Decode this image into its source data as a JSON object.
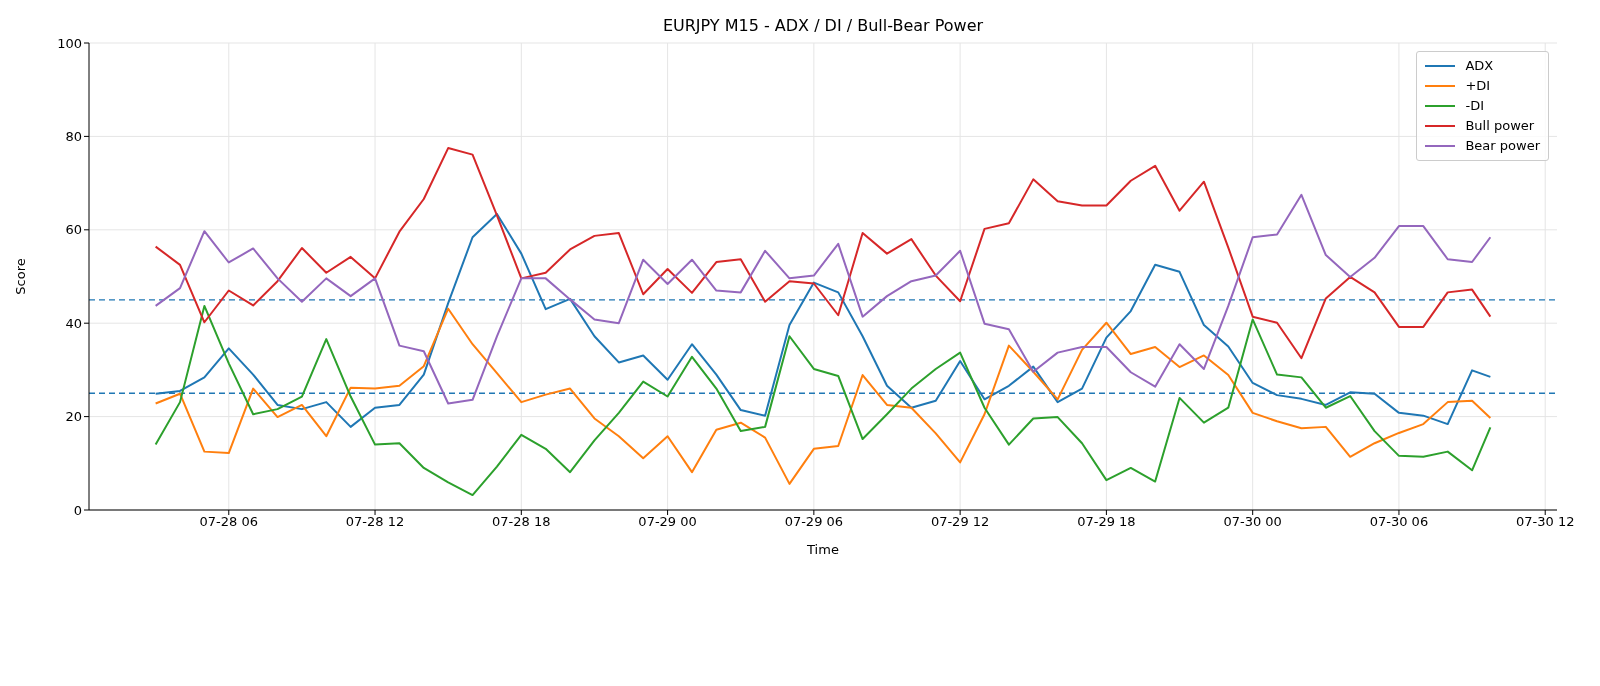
{
  "chart_data": {
    "type": "line",
    "title": "EURJPY M15 - ADX / DI / Bull-Bear Power",
    "xlabel": "Time",
    "ylabel": "Score",
    "x": [
      "--07-28T03:00",
      "--07-28T04:00",
      "--07-28T05:00",
      "--07-28T06:00",
      "--07-28T07:00",
      "--07-28T08:00",
      "--07-28T09:00",
      "--07-28T10:00",
      "--07-28T11:00",
      "--07-28T12:00",
      "--07-28T13:00",
      "--07-28T14:00",
      "--07-28T15:00",
      "--07-28T16:00",
      "--07-28T17:00",
      "--07-28T18:00",
      "--07-28T19:00",
      "--07-28T20:00",
      "--07-28T21:00",
      "--07-28T22:00",
      "--07-28T23:00",
      "--07-29T00:00",
      "--07-29T01:00",
      "--07-29T02:00",
      "--07-29T03:00",
      "--07-29T04:00",
      "--07-29T05:00",
      "--07-29T06:00",
      "--07-29T07:00",
      "--07-29T08:00",
      "--07-29T09:00",
      "--07-29T10:00",
      "--07-29T11:00",
      "--07-29T12:00",
      "--07-29T13:00",
      "--07-29T14:00",
      "--07-29T15:00",
      "--07-29T16:00",
      "--07-29T17:00",
      "--07-29T18:00",
      "--07-29T19:00",
      "--07-29T20:00",
      "--07-29T21:00",
      "--07-29T22:00",
      "--07-29T23:00",
      "--07-30T00:00",
      "--07-30T01:00",
      "--07-30T02:00",
      "--07-30T03:00",
      "--07-30T04:00",
      "--07-30T05:00",
      "--07-30T06:00",
      "--07-30T07:00",
      "--07-30T08:00",
      "--07-30T09:00",
      "--07-30T09:45"
    ],
    "series": [
      {
        "name": "ADX",
        "color": "#1f77b4",
        "values": [
          24.9,
          25.5,
          28.4,
          34.6,
          29,
          22.5,
          21.6,
          23.1,
          17.8,
          21.9,
          22.5,
          29,
          44.3,
          58.4,
          63.4,
          54.9,
          43,
          45.2,
          37.2,
          31.6,
          33.1,
          27.9,
          35.5,
          29,
          21.4,
          20.2,
          39.6,
          48.7,
          46.6,
          37.2,
          26.6,
          21.9,
          23.4,
          31.9,
          23.7,
          26.6,
          30.7,
          23.1,
          26,
          36.9,
          42.6,
          52.5,
          51,
          39.6,
          35,
          27.2,
          24.6,
          23.8,
          22.5,
          25.2,
          24.9,
          20.8,
          20.2,
          18.4,
          29.9,
          28.5
        ]
      },
      {
        "name": "+DI",
        "color": "#ff7f0e",
        "values": [
          22.8,
          24.9,
          12.5,
          12.2,
          26,
          19.9,
          22.5,
          15.8,
          26.2,
          26,
          26.6,
          30.8,
          43.1,
          35.5,
          29.3,
          23.1,
          24.7,
          26,
          19.6,
          15.8,
          11.1,
          15.8,
          8.1,
          17.2,
          18.7,
          15.5,
          5.6,
          13.1,
          13.7,
          28.9,
          22.5,
          21.9,
          16.4,
          10.2,
          20.5,
          35.2,
          29.6,
          23.7,
          34.3,
          40.1,
          33.4,
          34.9,
          30.6,
          33.1,
          28.9,
          20.8,
          19,
          17.5,
          17.8,
          11.4,
          14.3,
          16.5,
          18.4,
          23.1,
          23.4,
          19.7
        ]
      },
      {
        "name": "-DI",
        "color": "#2ca02c",
        "values": [
          14,
          23.1,
          43.7,
          31.4,
          20.5,
          21.6,
          24.3,
          36.6,
          24.3,
          14,
          14.3,
          9,
          5.9,
          3.2,
          9.3,
          16.1,
          13.1,
          8.1,
          14.9,
          20.8,
          27.5,
          24.3,
          32.8,
          26,
          16.9,
          17.8,
          37.2,
          30.2,
          28.7,
          15.2,
          20.5,
          26,
          30.2,
          33.7,
          21.9,
          14,
          19.6,
          19.9,
          14.3,
          6.4,
          9,
          6.1,
          24,
          18.7,
          21.9,
          40.8,
          29,
          28.4,
          21.9,
          24.4,
          16.9,
          11.6,
          11.4,
          12.5,
          8.5,
          17.7
        ]
      },
      {
        "name": "Bull power",
        "color": "#d62728",
        "values": [
          56.4,
          52.5,
          40.2,
          47,
          43.8,
          49,
          56.1,
          50.8,
          54.2,
          49.6,
          59.6,
          66.6,
          77.5,
          76.1,
          63.1,
          49.6,
          50.8,
          55.8,
          58.7,
          59.3,
          46.2,
          51.6,
          46.5,
          53.1,
          53.7,
          44.6,
          49,
          48.5,
          41.7,
          59.3,
          54.9,
          58,
          50.2,
          44.7,
          60.2,
          61.4,
          70.8,
          66.1,
          65.2,
          65.2,
          70.5,
          73.7,
          64.1,
          70.3,
          56.2,
          41.4,
          40.1,
          32.5,
          45.3,
          49.9,
          46.6,
          39.2,
          39.2,
          46.6,
          47.2,
          41.4
        ]
      },
      {
        "name": "Bear power",
        "color": "#9467bd",
        "values": [
          43.7,
          47.5,
          59.7,
          53,
          56,
          49.6,
          44.6,
          49.6,
          45.8,
          49.6,
          35.2,
          34,
          22.8,
          23.6,
          37.2,
          49.6,
          49.6,
          45.1,
          40.8,
          40,
          53.6,
          48.4,
          53.6,
          47,
          46.6,
          55.5,
          49.6,
          50.2,
          57,
          41.4,
          45.8,
          49,
          50.2,
          55.5,
          39.9,
          38.7,
          29.6,
          33.7,
          34.9,
          34.9,
          29.5,
          26.4,
          35.5,
          30.2,
          43.7,
          58.4,
          59,
          67.5,
          54.6,
          49.9,
          54,
          60.8,
          60.8,
          53.7,
          53.1,
          58.4
        ]
      }
    ],
    "ref_lines": [
      {
        "axis": "y",
        "value": 45,
        "color": "#1f77b4",
        "line_style": "dashed"
      },
      {
        "axis": "y",
        "value": 25,
        "color": "#1f77b4",
        "line_style": "dashed"
      }
    ],
    "xlim": [
      "--07-28T00:16",
      "--07-30T12:29"
    ],
    "xticks": [
      {
        "value": "--07-28T06:00",
        "label": "07-28 06"
      },
      {
        "value": "--07-28T12:00",
        "label": "07-28 12"
      },
      {
        "value": "--07-28T18:00",
        "label": "07-28 18"
      },
      {
        "value": "--07-29T00:00",
        "label": "07-29 00"
      },
      {
        "value": "--07-29T06:00",
        "label": "07-29 06"
      },
      {
        "value": "--07-29T12:00",
        "label": "07-29 12"
      },
      {
        "value": "--07-29T18:00",
        "label": "07-29 18"
      },
      {
        "value": "--07-30T00:00",
        "label": "07-30 00"
      },
      {
        "value": "--07-30T06:00",
        "label": "07-30 06"
      },
      {
        "value": "--07-30T12:00",
        "label": "07-30 12"
      }
    ],
    "ylim": [
      0,
      100
    ],
    "yticks": [
      0,
      20,
      40,
      60,
      80,
      100
    ],
    "grid": true,
    "legend": "top right"
  }
}
